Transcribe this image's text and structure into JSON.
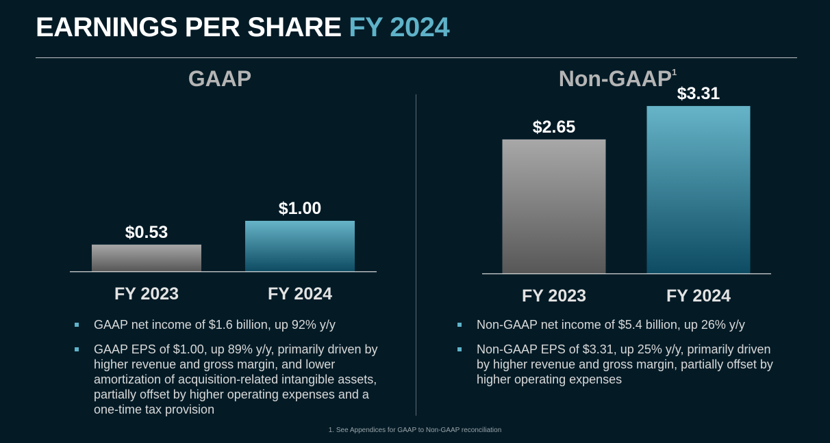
{
  "header": {
    "title_main": "EARNINGS PER SHARE",
    "title_accent": "FY 2024"
  },
  "colors": {
    "background": "#041b26",
    "accent": "#5fb3c9",
    "fy2023_bar": "#8f8f8f",
    "fy2024_bar": "#4f9fb4"
  },
  "gaap": {
    "title": "GAAP",
    "bullets": [
      "GAAP net income of $1.6 billion, up 92% y/y",
      "GAAP EPS of $1.00, up 89% y/y, primarily driven by higher revenue and gross margin, and lower amortization of acquisition-related intangible assets, partially offset by higher operating expenses and a one-time tax provision"
    ]
  },
  "non_gaap": {
    "title": "Non-GAAP",
    "title_sup": "1",
    "bullets": [
      "Non-GAAP net income of $5.4 billion, up 26% y/y",
      "Non-GAAP EPS of $3.31, up 25% y/y, primarily driven by higher revenue and gross margin, partially offset by higher operating expenses"
    ]
  },
  "chart_data": [
    {
      "type": "bar",
      "title": "GAAP",
      "categories": [
        "FY 2023",
        "FY 2024"
      ],
      "values": [
        0.53,
        1.0
      ],
      "data_labels": [
        "$0.53",
        "$1.00"
      ]
    },
    {
      "type": "bar",
      "title": "Non-GAAP",
      "categories": [
        "FY 2023",
        "FY 2024"
      ],
      "values": [
        2.65,
        3.31
      ],
      "data_labels": [
        "$2.65",
        "$3.31"
      ]
    }
  ],
  "footnote": "1. See Appendices for GAAP to Non-GAAP reconciliation"
}
